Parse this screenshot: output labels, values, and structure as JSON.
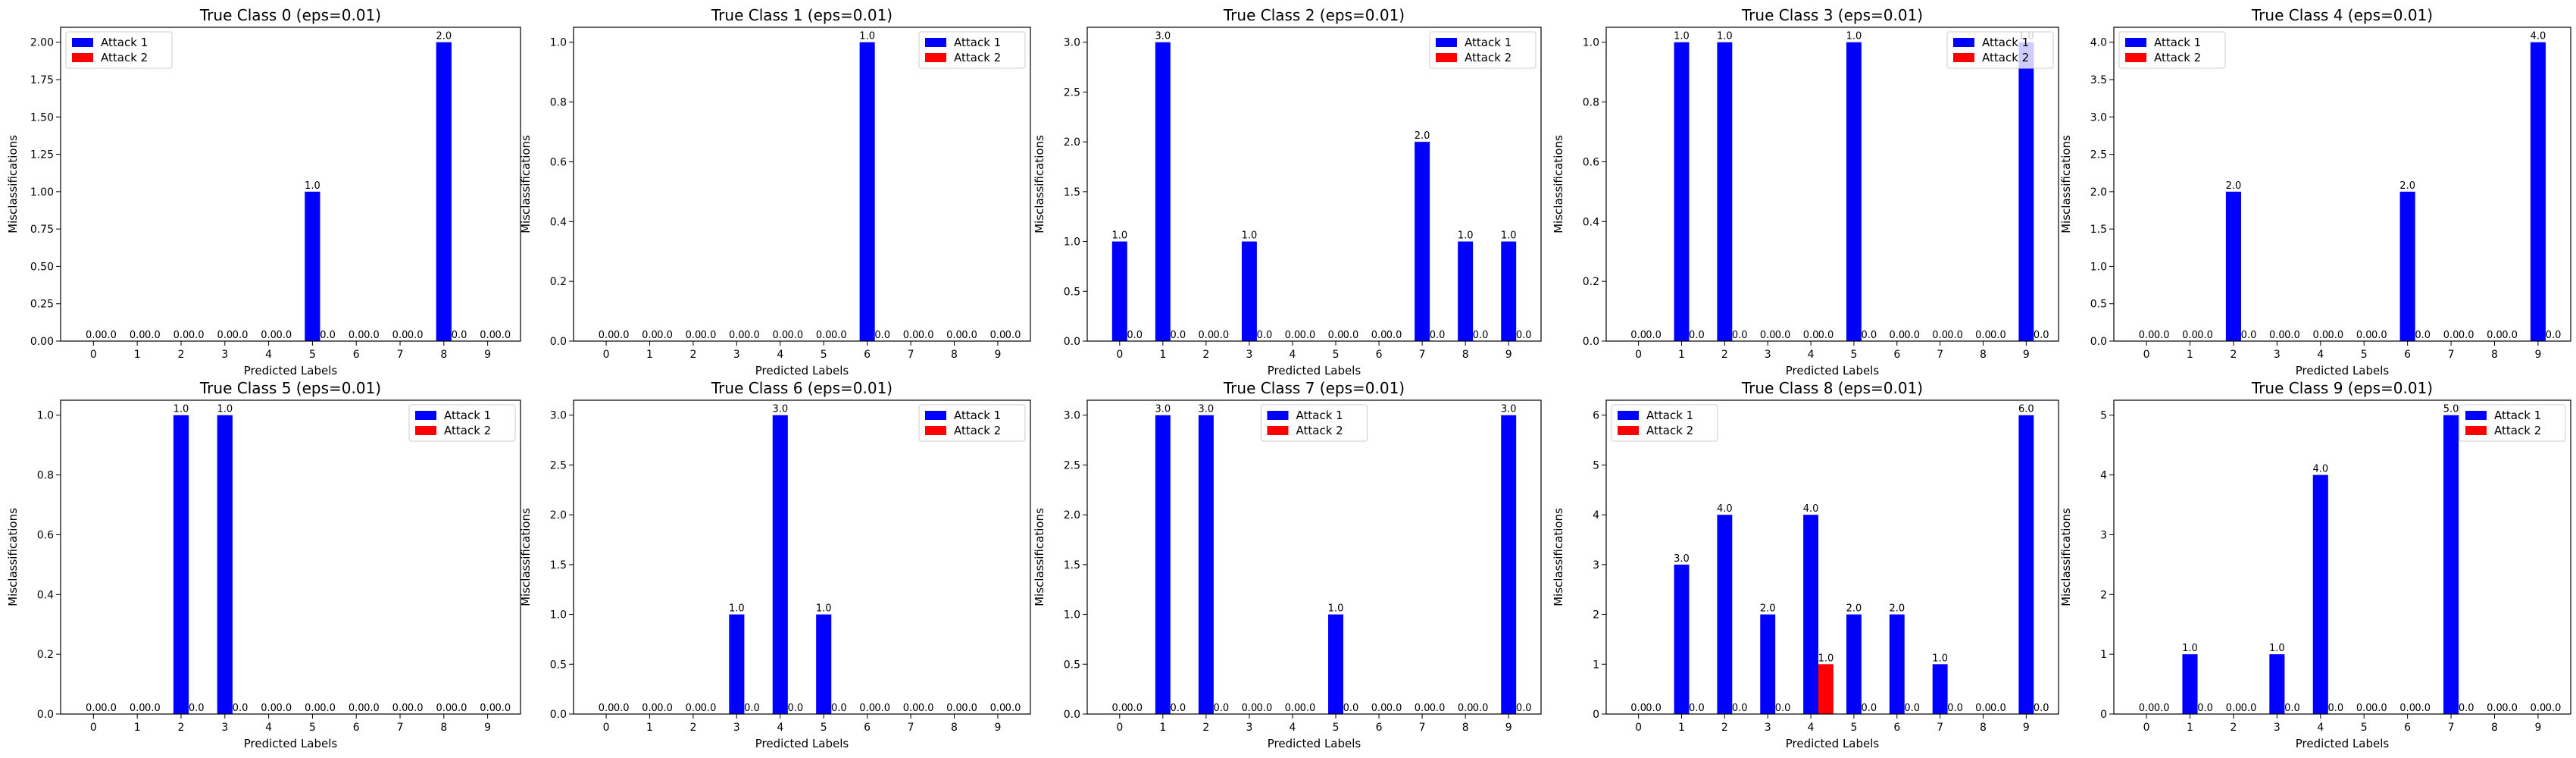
{
  "figure": {
    "rows": 2,
    "cols": 5
  },
  "colors": {
    "attack1": "#0000ff",
    "attack2": "#ff0000",
    "axes": "#000000",
    "background": "#ffffff"
  },
  "chart_data": [
    {
      "type": "bar",
      "title": "True Class 0 (eps=0.01)",
      "xlabel": "Predicted Labels",
      "ylabel": "Misclassifications",
      "categories": [
        "0",
        "1",
        "2",
        "3",
        "4",
        "5",
        "6",
        "7",
        "8",
        "9"
      ],
      "series": [
        {
          "name": "Attack 1",
          "values": [
            0,
            0,
            0,
            0,
            0,
            1,
            0,
            0,
            2,
            0
          ]
        },
        {
          "name": "Attack 2",
          "values": [
            0,
            0,
            0,
            0,
            0,
            0,
            0,
            0,
            0,
            0
          ]
        }
      ],
      "ylim": [
        0,
        2.1
      ],
      "yticks": [
        0,
        0.25,
        0.5,
        0.75,
        1.0,
        1.25,
        1.5,
        1.75,
        2.0
      ],
      "ytick_labels": [
        "0.00",
        "0.25",
        "0.50",
        "0.75",
        "1.00",
        "1.25",
        "1.50",
        "1.75",
        "2.00"
      ],
      "legend": "upper left",
      "grid": false
    },
    {
      "type": "bar",
      "title": "True Class 1 (eps=0.01)",
      "xlabel": "Predicted Labels",
      "ylabel": "Misclassifications",
      "categories": [
        "0",
        "1",
        "2",
        "3",
        "4",
        "5",
        "6",
        "7",
        "8",
        "9"
      ],
      "series": [
        {
          "name": "Attack 1",
          "values": [
            0,
            0,
            0,
            0,
            0,
            0,
            1,
            0,
            0,
            0
          ]
        },
        {
          "name": "Attack 2",
          "values": [
            0,
            0,
            0,
            0,
            0,
            0,
            0,
            0,
            0,
            0
          ]
        }
      ],
      "ylim": [
        0,
        1.05
      ],
      "yticks": [
        0,
        0.2,
        0.4,
        0.6,
        0.8,
        1.0
      ],
      "ytick_labels": [
        "0.0",
        "0.2",
        "0.4",
        "0.6",
        "0.8",
        "1.0"
      ],
      "legend": "upper right",
      "grid": false
    },
    {
      "type": "bar",
      "title": "True Class 2 (eps=0.01)",
      "xlabel": "Predicted Labels",
      "ylabel": "Misclassifications",
      "categories": [
        "0",
        "1",
        "2",
        "3",
        "4",
        "5",
        "6",
        "7",
        "8",
        "9"
      ],
      "series": [
        {
          "name": "Attack 1",
          "values": [
            1,
            3,
            0,
            1,
            0,
            0,
            0,
            2,
            1,
            1
          ]
        },
        {
          "name": "Attack 2",
          "values": [
            0,
            0,
            0,
            0,
            0,
            0,
            0,
            0,
            0,
            0
          ]
        }
      ],
      "ylim": [
        0,
        3.15
      ],
      "yticks": [
        0,
        0.5,
        1.0,
        1.5,
        2.0,
        2.5,
        3.0
      ],
      "ytick_labels": [
        "0.0",
        "0.5",
        "1.0",
        "1.5",
        "2.0",
        "2.5",
        "3.0"
      ],
      "legend": "upper right",
      "grid": false
    },
    {
      "type": "bar",
      "title": "True Class 3 (eps=0.01)",
      "xlabel": "Predicted Labels",
      "ylabel": "Misclassifications",
      "categories": [
        "0",
        "1",
        "2",
        "3",
        "4",
        "5",
        "6",
        "7",
        "8",
        "9"
      ],
      "series": [
        {
          "name": "Attack 1",
          "values": [
            0,
            1,
            1,
            0,
            0,
            1,
            0,
            0,
            0,
            1
          ]
        },
        {
          "name": "Attack 2",
          "values": [
            0,
            0,
            0,
            0,
            0,
            0,
            0,
            0,
            0,
            0
          ]
        }
      ],
      "ylim": [
        0,
        1.05
      ],
      "yticks": [
        0,
        0.2,
        0.4,
        0.6,
        0.8,
        1.0
      ],
      "ytick_labels": [
        "0.0",
        "0.2",
        "0.4",
        "0.6",
        "0.8",
        "1.0"
      ],
      "legend": "upper right",
      "grid": false
    },
    {
      "type": "bar",
      "title": "True Class 4 (eps=0.01)",
      "xlabel": "Predicted Labels",
      "ylabel": "Misclassifications",
      "categories": [
        "0",
        "1",
        "2",
        "3",
        "4",
        "5",
        "6",
        "7",
        "8",
        "9"
      ],
      "series": [
        {
          "name": "Attack 1",
          "values": [
            0,
            0,
            2,
            0,
            0,
            0,
            2,
            0,
            0,
            4
          ]
        },
        {
          "name": "Attack 2",
          "values": [
            0,
            0,
            0,
            0,
            0,
            0,
            0,
            0,
            0,
            0
          ]
        }
      ],
      "ylim": [
        0,
        4.2
      ],
      "yticks": [
        0,
        0.5,
        1.0,
        1.5,
        2.0,
        2.5,
        3.0,
        3.5,
        4.0
      ],
      "ytick_labels": [
        "0.0",
        "0.5",
        "1.0",
        "1.5",
        "2.0",
        "2.5",
        "3.0",
        "3.5",
        "4.0"
      ],
      "legend": "upper left",
      "grid": false
    },
    {
      "type": "bar",
      "title": "True Class 5 (eps=0.01)",
      "xlabel": "Predicted Labels",
      "ylabel": "Misclassifications",
      "categories": [
        "0",
        "1",
        "2",
        "3",
        "4",
        "5",
        "6",
        "7",
        "8",
        "9"
      ],
      "series": [
        {
          "name": "Attack 1",
          "values": [
            0,
            0,
            1,
            1,
            0,
            0,
            0,
            0,
            0,
            0
          ]
        },
        {
          "name": "Attack 2",
          "values": [
            0,
            0,
            0,
            0,
            0,
            0,
            0,
            0,
            0,
            0
          ]
        }
      ],
      "ylim": [
        0,
        1.05
      ],
      "yticks": [
        0,
        0.2,
        0.4,
        0.6,
        0.8,
        1.0
      ],
      "ytick_labels": [
        "0.0",
        "0.2",
        "0.4",
        "0.6",
        "0.8",
        "1.0"
      ],
      "legend": "upper right",
      "grid": false
    },
    {
      "type": "bar",
      "title": "True Class 6 (eps=0.01)",
      "xlabel": "Predicted Labels",
      "ylabel": "Misclassifications",
      "categories": [
        "0",
        "1",
        "2",
        "3",
        "4",
        "5",
        "6",
        "7",
        "8",
        "9"
      ],
      "series": [
        {
          "name": "Attack 1",
          "values": [
            0,
            0,
            0,
            1,
            3,
            1,
            0,
            0,
            0,
            0
          ]
        },
        {
          "name": "Attack 2",
          "values": [
            0,
            0,
            0,
            0,
            0,
            0,
            0,
            0,
            0,
            0
          ]
        }
      ],
      "ylim": [
        0,
        3.15
      ],
      "yticks": [
        0,
        0.5,
        1.0,
        1.5,
        2.0,
        2.5,
        3.0
      ],
      "ytick_labels": [
        "0.0",
        "0.5",
        "1.0",
        "1.5",
        "2.0",
        "2.5",
        "3.0"
      ],
      "legend": "upper right",
      "grid": false
    },
    {
      "type": "bar",
      "title": "True Class 7 (eps=0.01)",
      "xlabel": "Predicted Labels",
      "ylabel": "Misclassifications",
      "categories": [
        "0",
        "1",
        "2",
        "3",
        "4",
        "5",
        "6",
        "7",
        "8",
        "9"
      ],
      "series": [
        {
          "name": "Attack 1",
          "values": [
            0,
            3,
            3,
            0,
            0,
            1,
            0,
            0,
            0,
            3
          ]
        },
        {
          "name": "Attack 2",
          "values": [
            0,
            0,
            0,
            0,
            0,
            0,
            0,
            0,
            0,
            0
          ]
        }
      ],
      "ylim": [
        0,
        3.15
      ],
      "yticks": [
        0,
        0.5,
        1.0,
        1.5,
        2.0,
        2.5,
        3.0
      ],
      "ytick_labels": [
        "0.0",
        "0.5",
        "1.0",
        "1.5",
        "2.0",
        "2.5",
        "3.0"
      ],
      "legend": "upper center",
      "grid": false
    },
    {
      "type": "bar",
      "title": "True Class 8 (eps=0.01)",
      "xlabel": "Predicted Labels",
      "ylabel": "Misclassifications",
      "categories": [
        "0",
        "1",
        "2",
        "3",
        "4",
        "5",
        "6",
        "7",
        "8",
        "9"
      ],
      "series": [
        {
          "name": "Attack 1",
          "values": [
            0,
            3,
            4,
            2,
            4,
            2,
            2,
            1,
            0,
            6
          ]
        },
        {
          "name": "Attack 2",
          "values": [
            0,
            0,
            0,
            0,
            1,
            0,
            0,
            0,
            0,
            0
          ]
        }
      ],
      "ylim": [
        0,
        6.3
      ],
      "yticks": [
        0,
        1,
        2,
        3,
        4,
        5,
        6
      ],
      "ytick_labels": [
        "0",
        "1",
        "2",
        "3",
        "4",
        "5",
        "6"
      ],
      "legend": "upper left",
      "grid": false
    },
    {
      "type": "bar",
      "title": "True Class 9 (eps=0.01)",
      "xlabel": "Predicted Labels",
      "ylabel": "Misclassifications",
      "categories": [
        "0",
        "1",
        "2",
        "3",
        "4",
        "5",
        "6",
        "7",
        "8",
        "9"
      ],
      "series": [
        {
          "name": "Attack 1",
          "values": [
            0,
            1,
            0,
            1,
            4,
            0,
            0,
            5,
            0,
            0
          ]
        },
        {
          "name": "Attack 2",
          "values": [
            0,
            0,
            0,
            0,
            0,
            0,
            0,
            0,
            0,
            0
          ]
        }
      ],
      "ylim": [
        0,
        5.25
      ],
      "yticks": [
        0,
        1,
        2,
        3,
        4,
        5
      ],
      "ytick_labels": [
        "0",
        "1",
        "2",
        "3",
        "4",
        "5"
      ],
      "legend": "upper right",
      "grid": false
    }
  ]
}
